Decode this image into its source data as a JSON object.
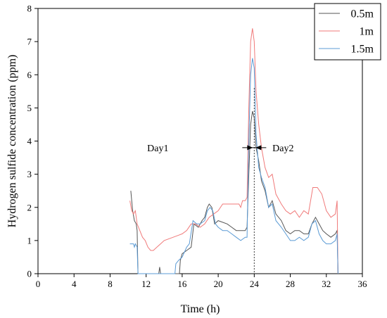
{
  "chart_data": {
    "type": "line",
    "xlabel": "Time (h)",
    "ylabel": "Hydrogen sulfide concentration (ppm)",
    "xlim": [
      0,
      36
    ],
    "ylim": [
      0,
      8
    ],
    "xticks": [
      0,
      4,
      8,
      12,
      16,
      20,
      24,
      28,
      32,
      36
    ],
    "yticks": [
      0,
      1,
      2,
      3,
      4,
      5,
      6,
      7,
      8
    ],
    "grid": false,
    "legend_position": "top-right",
    "annotations": [
      {
        "text": "Day1",
        "x": 13.3,
        "y": 3.8
      },
      {
        "text": "Day2",
        "x": 27.2,
        "y": 3.8
      }
    ],
    "divider": {
      "x": 24
    },
    "series": [
      {
        "name": "0.5m",
        "color": "#555555",
        "points": [
          [
            10.3,
            2.5
          ],
          [
            10.5,
            1.9
          ],
          [
            10.7,
            1.6
          ],
          [
            10.9,
            1.5
          ],
          [
            11.0,
            1.3
          ],
          [
            11.1,
            0.0
          ],
          [
            13.4,
            0.0
          ],
          [
            13.5,
            0.2
          ],
          [
            13.6,
            0.0
          ],
          [
            15.7,
            0.0
          ],
          [
            15.8,
            0.4
          ],
          [
            16.0,
            0.6
          ],
          [
            16.5,
            0.7
          ],
          [
            17.0,
            0.8
          ],
          [
            17.3,
            1.5
          ],
          [
            17.8,
            1.4
          ],
          [
            18.2,
            1.6
          ],
          [
            18.5,
            1.7
          ],
          [
            18.8,
            2.0
          ],
          [
            19.0,
            2.1
          ],
          [
            19.3,
            2.0
          ],
          [
            19.6,
            1.5
          ],
          [
            20.0,
            1.6
          ],
          [
            21.0,
            1.5
          ],
          [
            21.5,
            1.4
          ],
          [
            22.0,
            1.3
          ],
          [
            22.5,
            1.3
          ],
          [
            23.0,
            1.3
          ],
          [
            23.2,
            1.4
          ],
          [
            23.4,
            3.0
          ],
          [
            23.6,
            4.5
          ],
          [
            23.8,
            4.9
          ],
          [
            24.0,
            4.7
          ],
          [
            24.2,
            3.8
          ],
          [
            24.5,
            3.4
          ],
          [
            24.8,
            2.8
          ],
          [
            25.2,
            2.5
          ],
          [
            25.6,
            2.0
          ],
          [
            26.0,
            2.2
          ],
          [
            26.4,
            1.8
          ],
          [
            27.0,
            1.6
          ],
          [
            27.5,
            1.3
          ],
          [
            28.0,
            1.2
          ],
          [
            28.5,
            1.3
          ],
          [
            29.0,
            1.3
          ],
          [
            29.5,
            1.2
          ],
          [
            30.0,
            1.2
          ],
          [
            30.4,
            1.5
          ],
          [
            30.8,
            1.7
          ],
          [
            31.2,
            1.5
          ],
          [
            31.6,
            1.3
          ],
          [
            32.0,
            1.2
          ],
          [
            32.5,
            1.1
          ],
          [
            33.0,
            1.2
          ],
          [
            33.2,
            1.3
          ],
          [
            33.3,
            0.0
          ]
        ]
      },
      {
        "name": "1m",
        "color": "#f07a7a",
        "points": [
          [
            10.2,
            2.2
          ],
          [
            10.4,
            1.9
          ],
          [
            10.6,
            1.8
          ],
          [
            10.8,
            1.9
          ],
          [
            11.0,
            1.5
          ],
          [
            11.3,
            1.3
          ],
          [
            11.6,
            1.1
          ],
          [
            11.9,
            1.0
          ],
          [
            12.2,
            0.8
          ],
          [
            12.5,
            0.7
          ],
          [
            12.8,
            0.7
          ],
          [
            13.2,
            0.8
          ],
          [
            13.6,
            0.9
          ],
          [
            14.0,
            1.0
          ],
          [
            15.0,
            1.1
          ],
          [
            16.0,
            1.2
          ],
          [
            16.5,
            1.3
          ],
          [
            17.0,
            1.5
          ],
          [
            17.5,
            1.5
          ],
          [
            18.0,
            1.4
          ],
          [
            18.5,
            1.5
          ],
          [
            19.0,
            1.7
          ],
          [
            19.5,
            1.8
          ],
          [
            20.0,
            1.9
          ],
          [
            20.5,
            2.1
          ],
          [
            21.0,
            2.1
          ],
          [
            22.0,
            2.1
          ],
          [
            22.3,
            2.1
          ],
          [
            22.5,
            2.0
          ],
          [
            22.7,
            2.2
          ],
          [
            23.0,
            2.2
          ],
          [
            23.2,
            2.3
          ],
          [
            23.4,
            5.0
          ],
          [
            23.6,
            7.0
          ],
          [
            23.8,
            7.4
          ],
          [
            24.0,
            7.0
          ],
          [
            24.2,
            5.5
          ],
          [
            24.5,
            4.5
          ],
          [
            24.8,
            3.8
          ],
          [
            25.2,
            3.2
          ],
          [
            25.6,
            2.9
          ],
          [
            26.0,
            3.0
          ],
          [
            26.4,
            2.4
          ],
          [
            27.0,
            2.1
          ],
          [
            27.5,
            1.9
          ],
          [
            28.0,
            1.8
          ],
          [
            28.5,
            1.9
          ],
          [
            29.0,
            1.7
          ],
          [
            29.5,
            1.9
          ],
          [
            30.0,
            1.8
          ],
          [
            30.5,
            2.6
          ],
          [
            31.0,
            2.6
          ],
          [
            31.5,
            2.4
          ],
          [
            32.0,
            1.9
          ],
          [
            32.5,
            1.7
          ],
          [
            33.0,
            1.8
          ],
          [
            33.2,
            2.2
          ],
          [
            33.3,
            0.0
          ]
        ]
      },
      {
        "name": "1.5m",
        "color": "#5b9bd5",
        "points": [
          [
            10.2,
            0.9
          ],
          [
            10.6,
            0.9
          ],
          [
            10.7,
            0.8
          ],
          [
            10.8,
            0.9
          ],
          [
            11.0,
            0.8
          ],
          [
            11.1,
            0.0
          ],
          [
            15.2,
            0.0
          ],
          [
            15.3,
            0.3
          ],
          [
            15.6,
            0.4
          ],
          [
            16.0,
            0.5
          ],
          [
            16.5,
            0.8
          ],
          [
            16.8,
            0.9
          ],
          [
            17.2,
            1.6
          ],
          [
            17.6,
            1.5
          ],
          [
            18.0,
            1.5
          ],
          [
            18.5,
            1.6
          ],
          [
            18.8,
            1.9
          ],
          [
            19.1,
            2.0
          ],
          [
            19.4,
            1.9
          ],
          [
            19.7,
            1.5
          ],
          [
            20.0,
            1.4
          ],
          [
            20.5,
            1.3
          ],
          [
            21.0,
            1.3
          ],
          [
            21.5,
            1.2
          ],
          [
            22.0,
            1.1
          ],
          [
            22.5,
            1.0
          ],
          [
            23.0,
            1.1
          ],
          [
            23.2,
            1.1
          ],
          [
            23.4,
            4.0
          ],
          [
            23.6,
            6.0
          ],
          [
            23.8,
            6.5
          ],
          [
            24.0,
            6.2
          ],
          [
            24.2,
            4.2
          ],
          [
            24.5,
            3.2
          ],
          [
            24.8,
            2.9
          ],
          [
            25.2,
            2.6
          ],
          [
            25.6,
            2.0
          ],
          [
            26.0,
            2.1
          ],
          [
            26.4,
            1.6
          ],
          [
            27.0,
            1.4
          ],
          [
            27.5,
            1.2
          ],
          [
            28.0,
            1.0
          ],
          [
            28.5,
            1.0
          ],
          [
            29.0,
            1.1
          ],
          [
            29.5,
            1.0
          ],
          [
            30.0,
            1.1
          ],
          [
            30.4,
            1.5
          ],
          [
            30.8,
            1.6
          ],
          [
            31.2,
            1.2
          ],
          [
            31.6,
            1.0
          ],
          [
            32.0,
            0.9
          ],
          [
            32.5,
            0.9
          ],
          [
            33.0,
            1.0
          ],
          [
            33.2,
            1.2
          ],
          [
            33.3,
            0.0
          ]
        ]
      }
    ]
  }
}
